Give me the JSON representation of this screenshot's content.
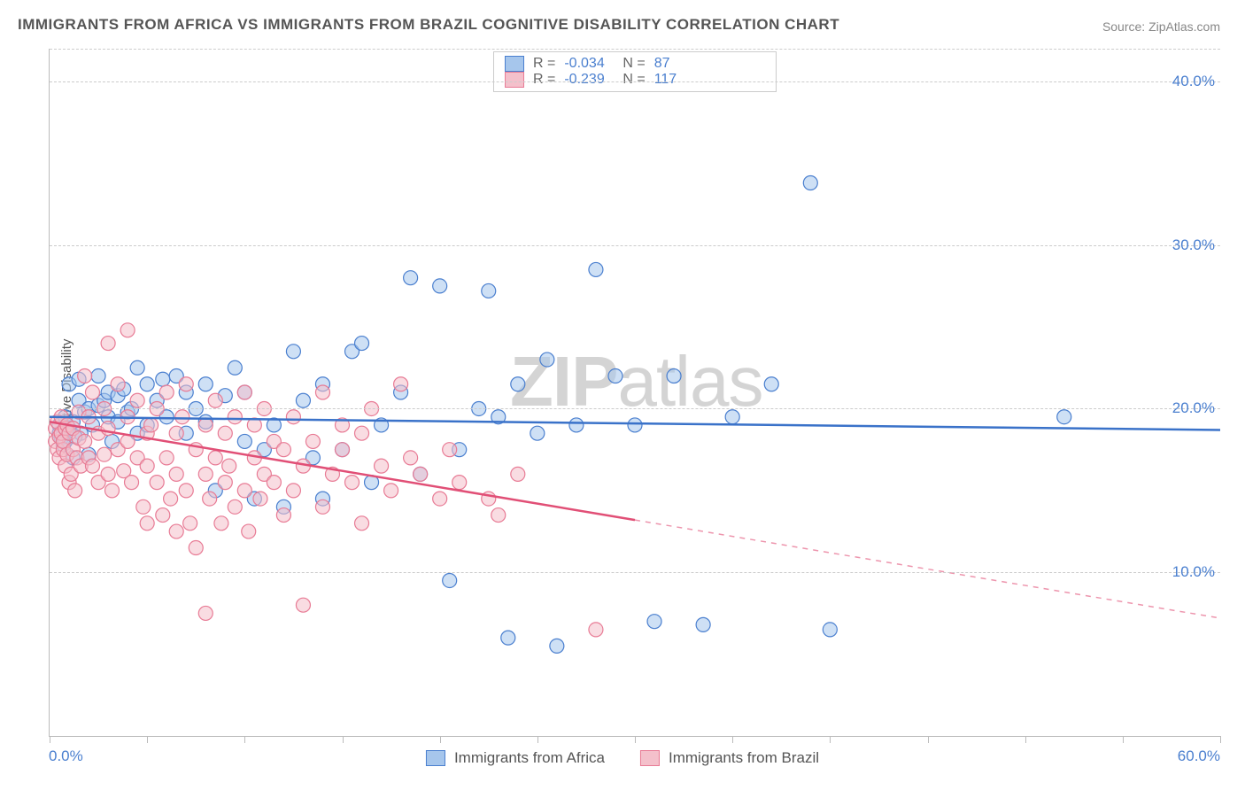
{
  "title": "IMMIGRANTS FROM AFRICA VS IMMIGRANTS FROM BRAZIL COGNITIVE DISABILITY CORRELATION CHART",
  "source": "Source: ZipAtlas.com",
  "ylabel": "Cognitive Disability",
  "watermark": {
    "zip": "ZIP",
    "atlas": "atlas"
  },
  "chart": {
    "type": "scatter-with-regression",
    "xlim": [
      0,
      60
    ],
    "ylim": [
      0,
      42
    ],
    "x_tick_step": 5,
    "y_gridlines": [
      10,
      20,
      30,
      40
    ],
    "y_tick_labels": [
      "10.0%",
      "20.0%",
      "30.0%",
      "40.0%"
    ],
    "x_min_label": "0.0%",
    "x_max_label": "60.0%",
    "background_color": "#ffffff",
    "grid_color": "#cccccc",
    "axis_color": "#bbbbbb",
    "marker_radius": 8,
    "marker_opacity": 0.55,
    "series": [
      {
        "name": "Immigrants from Africa",
        "fill_color": "#a6c6ec",
        "stroke_color": "#4a7fcf",
        "line_color": "#3a72c9",
        "R": "-0.034",
        "N": "87",
        "regression": {
          "x1": 0,
          "y1": 19.5,
          "x2": 60,
          "y2": 18.7,
          "solid_until_x": 60
        },
        "points": [
          [
            0.5,
            18.5
          ],
          [
            0.5,
            19.0
          ],
          [
            0.6,
            18.2
          ],
          [
            0.7,
            17.8
          ],
          [
            0.8,
            19.5
          ],
          [
            0.8,
            18.0
          ],
          [
            1.0,
            21.5
          ],
          [
            1.0,
            18.8
          ],
          [
            1.2,
            19.2
          ],
          [
            1.2,
            17.0
          ],
          [
            1.5,
            20.5
          ],
          [
            1.5,
            21.8
          ],
          [
            1.6,
            18.5
          ],
          [
            1.8,
            19.8
          ],
          [
            2.0,
            20.0
          ],
          [
            2.0,
            17.2
          ],
          [
            2.2,
            19.0
          ],
          [
            2.5,
            20.2
          ],
          [
            2.5,
            22.0
          ],
          [
            2.8,
            20.5
          ],
          [
            3.0,
            19.5
          ],
          [
            3.0,
            21.0
          ],
          [
            3.2,
            18.0
          ],
          [
            3.5,
            20.8
          ],
          [
            3.5,
            19.2
          ],
          [
            3.8,
            21.2
          ],
          [
            4.0,
            19.8
          ],
          [
            4.2,
            20.0
          ],
          [
            4.5,
            22.5
          ],
          [
            4.5,
            18.5
          ],
          [
            5.0,
            21.5
          ],
          [
            5.0,
            19.0
          ],
          [
            5.5,
            20.5
          ],
          [
            5.8,
            21.8
          ],
          [
            6.0,
            19.5
          ],
          [
            6.5,
            22.0
          ],
          [
            7.0,
            21.0
          ],
          [
            7.0,
            18.5
          ],
          [
            7.5,
            20.0
          ],
          [
            8.0,
            19.2
          ],
          [
            8.0,
            21.5
          ],
          [
            8.5,
            15.0
          ],
          [
            9.0,
            20.8
          ],
          [
            9.5,
            22.5
          ],
          [
            10.0,
            18.0
          ],
          [
            10.0,
            21.0
          ],
          [
            10.5,
            14.5
          ],
          [
            11.0,
            17.5
          ],
          [
            11.5,
            19.0
          ],
          [
            12.0,
            14.0
          ],
          [
            12.5,
            23.5
          ],
          [
            13.0,
            20.5
          ],
          [
            13.5,
            17.0
          ],
          [
            14.0,
            21.5
          ],
          [
            14.0,
            14.5
          ],
          [
            15.0,
            17.5
          ],
          [
            15.5,
            23.5
          ],
          [
            16.0,
            24.0
          ],
          [
            16.5,
            15.5
          ],
          [
            17.0,
            19.0
          ],
          [
            18.0,
            21.0
          ],
          [
            18.5,
            28.0
          ],
          [
            19.0,
            16.0
          ],
          [
            20.0,
            27.5
          ],
          [
            20.5,
            9.5
          ],
          [
            21.0,
            17.5
          ],
          [
            22.0,
            20.0
          ],
          [
            22.5,
            27.2
          ],
          [
            23.0,
            19.5
          ],
          [
            23.5,
            6.0
          ],
          [
            24.0,
            21.5
          ],
          [
            25.0,
            18.5
          ],
          [
            25.5,
            23.0
          ],
          [
            26.0,
            5.5
          ],
          [
            27.0,
            19.0
          ],
          [
            28.0,
            28.5
          ],
          [
            29.0,
            22.0
          ],
          [
            30.0,
            19.0
          ],
          [
            31.0,
            7.0
          ],
          [
            32.0,
            22.0
          ],
          [
            33.5,
            6.8
          ],
          [
            35.0,
            19.5
          ],
          [
            37.0,
            21.5
          ],
          [
            39.0,
            33.8
          ],
          [
            40.0,
            6.5
          ],
          [
            52.0,
            19.5
          ],
          [
            1.3,
            18.3
          ]
        ]
      },
      {
        "name": "Immigrants from Brazil",
        "fill_color": "#f4c0cb",
        "stroke_color": "#e87b95",
        "line_color": "#e14f76",
        "R": "-0.239",
        "N": "117",
        "regression": {
          "x1": 0,
          "y1": 19.2,
          "x2": 60,
          "y2": 7.2,
          "solid_until_x": 30
        },
        "points": [
          [
            0.3,
            18.0
          ],
          [
            0.3,
            18.8
          ],
          [
            0.4,
            17.5
          ],
          [
            0.4,
            19.2
          ],
          [
            0.5,
            18.3
          ],
          [
            0.5,
            17.0
          ],
          [
            0.6,
            18.5
          ],
          [
            0.6,
            19.5
          ],
          [
            0.7,
            17.5
          ],
          [
            0.7,
            18.0
          ],
          [
            0.8,
            16.5
          ],
          [
            0.8,
            18.8
          ],
          [
            0.9,
            17.2
          ],
          [
            0.9,
            19.0
          ],
          [
            1.0,
            15.5
          ],
          [
            1.0,
            18.5
          ],
          [
            1.1,
            16.0
          ],
          [
            1.2,
            17.5
          ],
          [
            1.2,
            18.8
          ],
          [
            1.3,
            15.0
          ],
          [
            1.4,
            17.0
          ],
          [
            1.5,
            18.2
          ],
          [
            1.5,
            19.8
          ],
          [
            1.6,
            16.5
          ],
          [
            1.8,
            18.0
          ],
          [
            1.8,
            22.0
          ],
          [
            2.0,
            17.0
          ],
          [
            2.0,
            19.5
          ],
          [
            2.2,
            16.5
          ],
          [
            2.2,
            21.0
          ],
          [
            2.5,
            18.5
          ],
          [
            2.5,
            15.5
          ],
          [
            2.8,
            17.2
          ],
          [
            2.8,
            20.0
          ],
          [
            3.0,
            16.0
          ],
          [
            3.0,
            18.8
          ],
          [
            3.0,
            24.0
          ],
          [
            3.2,
            15.0
          ],
          [
            3.5,
            17.5
          ],
          [
            3.5,
            21.5
          ],
          [
            3.8,
            16.2
          ],
          [
            4.0,
            18.0
          ],
          [
            4.0,
            19.5
          ],
          [
            4.0,
            24.8
          ],
          [
            4.2,
            15.5
          ],
          [
            4.5,
            17.0
          ],
          [
            4.5,
            20.5
          ],
          [
            4.8,
            14.0
          ],
          [
            5.0,
            16.5
          ],
          [
            5.0,
            18.5
          ],
          [
            5.0,
            13.0
          ],
          [
            5.2,
            19.0
          ],
          [
            5.5,
            15.5
          ],
          [
            5.5,
            20.0
          ],
          [
            5.8,
            13.5
          ],
          [
            6.0,
            17.0
          ],
          [
            6.0,
            21.0
          ],
          [
            6.2,
            14.5
          ],
          [
            6.5,
            16.0
          ],
          [
            6.5,
            18.5
          ],
          [
            6.5,
            12.5
          ],
          [
            6.8,
            19.5
          ],
          [
            7.0,
            15.0
          ],
          [
            7.0,
            21.5
          ],
          [
            7.2,
            13.0
          ],
          [
            7.5,
            17.5
          ],
          [
            7.5,
            11.5
          ],
          [
            8.0,
            16.0
          ],
          [
            8.0,
            19.0
          ],
          [
            8.0,
            7.5
          ],
          [
            8.2,
            14.5
          ],
          [
            8.5,
            17.0
          ],
          [
            8.5,
            20.5
          ],
          [
            8.8,
            13.0
          ],
          [
            9.0,
            15.5
          ],
          [
            9.0,
            18.5
          ],
          [
            9.2,
            16.5
          ],
          [
            9.5,
            14.0
          ],
          [
            9.5,
            19.5
          ],
          [
            10.0,
            15.0
          ],
          [
            10.0,
            21.0
          ],
          [
            10.2,
            12.5
          ],
          [
            10.5,
            17.0
          ],
          [
            10.5,
            19.0
          ],
          [
            10.8,
            14.5
          ],
          [
            11.0,
            16.0
          ],
          [
            11.0,
            20.0
          ],
          [
            11.5,
            15.5
          ],
          [
            11.5,
            18.0
          ],
          [
            12.0,
            13.5
          ],
          [
            12.0,
            17.5
          ],
          [
            12.5,
            15.0
          ],
          [
            12.5,
            19.5
          ],
          [
            13.0,
            16.5
          ],
          [
            13.0,
            8.0
          ],
          [
            13.5,
            18.0
          ],
          [
            14.0,
            14.0
          ],
          [
            14.0,
            21.0
          ],
          [
            14.5,
            16.0
          ],
          [
            15.0,
            17.5
          ],
          [
            15.0,
            19.0
          ],
          [
            15.5,
            15.5
          ],
          [
            16.0,
            13.0
          ],
          [
            16.0,
            18.5
          ],
          [
            16.5,
            20.0
          ],
          [
            17.0,
            16.5
          ],
          [
            17.5,
            15.0
          ],
          [
            18.0,
            21.5
          ],
          [
            18.5,
            17.0
          ],
          [
            19.0,
            16.0
          ],
          [
            20.0,
            14.5
          ],
          [
            20.5,
            17.5
          ],
          [
            21.0,
            15.5
          ],
          [
            23.0,
            13.5
          ],
          [
            24.0,
            16.0
          ],
          [
            28.0,
            6.5
          ],
          [
            22.5,
            14.5
          ]
        ]
      }
    ]
  },
  "legend_bottom": [
    {
      "label": "Immigrants from Africa",
      "fill": "#a6c6ec",
      "stroke": "#4a7fcf"
    },
    {
      "label": "Immigrants from Brazil",
      "fill": "#f4c0cb",
      "stroke": "#e87b95"
    }
  ]
}
